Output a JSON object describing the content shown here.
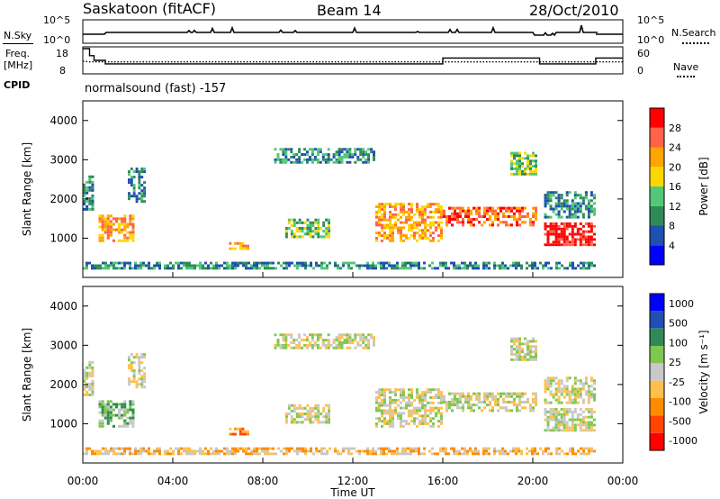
{
  "header": {
    "station": "Saskatoon (fitACF)",
    "beam": "Beam 14",
    "date": "28/Oct/2010"
  },
  "side_labels": {
    "nsky": "N.Sky",
    "freq_line1": "Freq.",
    "freq_line2": "[MHz]",
    "cpid": "CPID",
    "nsearch": "N.Search",
    "nave": "Nave"
  },
  "cpid_text": "normalsound (fast) -157",
  "colors": {
    "power_scale": [
      "#0000ff",
      "#1f4fb0",
      "#2e8b57",
      "#50c878",
      "#ffd700",
      "#ffa500",
      "#ff6347",
      "#ff0000"
    ],
    "velocity_scale": [
      "#ff0000",
      "#ff4500",
      "#ff8c00",
      "#ffc04c",
      "#c8c8c8",
      "#7ec850",
      "#2e8b57",
      "#1f4fb0",
      "#0000ff"
    ],
    "ground_scatter": "#c8c8c8"
  },
  "chart_data": [
    {
      "type": "line",
      "name": "noise-panel",
      "y_tick_labels": [
        "10^5",
        "10^0"
      ],
      "y2_tick_labels": [
        "10^5",
        "10^0"
      ],
      "series": [
        {
          "name": "N.Sky",
          "style": "solid"
        },
        {
          "name": "N.Search",
          "style": "dotted"
        }
      ]
    },
    {
      "type": "line",
      "name": "freq-nave-panel",
      "y_tick_labels": [
        "18",
        "8"
      ],
      "y2_tick_labels": [
        "60",
        "0"
      ],
      "x_hours": [
        0,
        0.3,
        0.5,
        1.0,
        1.7,
        16.0,
        20.2,
        20.3,
        21.0,
        22.8,
        24.0
      ],
      "series": [
        {
          "name": "Freq. [MHz]",
          "style": "solid",
          "values": [
            18,
            15,
            13,
            11.5,
            11.5,
            14,
            14,
            11.5,
            11.5,
            14,
            14
          ]
        },
        {
          "name": "Nave",
          "style": "dotted",
          "values": [
            28,
            26,
            26,
            26,
            26,
            26,
            26,
            26,
            26,
            26,
            26
          ]
        }
      ]
    },
    {
      "type": "heatmap",
      "name": "power-panel",
      "ylabel": "Slant Range [km]",
      "y_ticks": [
        "1000",
        "2000",
        "3000",
        "4000"
      ],
      "ylim": [
        0,
        4500
      ],
      "colorbar_label": "Power [dB]",
      "colorbar_ticks": [
        "4",
        "8",
        "12",
        "16",
        "20",
        "24",
        "28"
      ],
      "echo_bands": [
        {
          "t0": 0.0,
          "t1": 0.5,
          "r0": 1700,
          "r1": 2600,
          "v": 2
        },
        {
          "t0": 0.7,
          "t1": 2.3,
          "r0": 900,
          "r1": 1600,
          "v": 5
        },
        {
          "t0": 2.0,
          "t1": 2.8,
          "r0": 1900,
          "r1": 2800,
          "v": 2
        },
        {
          "t0": 6.5,
          "t1": 7.4,
          "r0": 700,
          "r1": 900,
          "v": 5
        },
        {
          "t0": 9.0,
          "t1": 11.0,
          "r0": 1000,
          "r1": 1500,
          "v": 3
        },
        {
          "t0": 8.5,
          "t1": 13.0,
          "r0": 2900,
          "r1": 3300,
          "v": 2
        },
        {
          "t0": 13.0,
          "t1": 16.0,
          "r0": 900,
          "r1": 1900,
          "v": 5
        },
        {
          "t0": 16.0,
          "t1": 20.2,
          "r0": 1300,
          "r1": 1800,
          "v": 6
        },
        {
          "t0": 19.0,
          "t1": 20.2,
          "r0": 2600,
          "r1": 3200,
          "v": 3
        },
        {
          "t0": 20.5,
          "t1": 22.8,
          "r0": 800,
          "r1": 1400,
          "v": 7
        },
        {
          "t0": 20.5,
          "t1": 22.8,
          "r0": 1500,
          "r1": 2200,
          "v": 2
        },
        {
          "t0": 0.0,
          "t1": 22.8,
          "r0": 200,
          "r1": 400,
          "v": 2
        }
      ]
    },
    {
      "type": "heatmap",
      "name": "velocity-panel",
      "ylabel": "Slant Range [km]",
      "y_ticks": [
        "1000",
        "2000",
        "3000",
        "4000"
      ],
      "ylim": [
        0,
        4500
      ],
      "colorbar_label": "Velocity [m s⁻¹]",
      "colorbar_ticks": [
        "1000",
        "500",
        "100",
        "25",
        "-25",
        "-100",
        "-500",
        "-1000"
      ],
      "echo_bands": [
        {
          "t0": 0.0,
          "t1": 0.5,
          "r0": 1700,
          "r1": 2600,
          "v": 4
        },
        {
          "t0": 0.7,
          "t1": 2.3,
          "r0": 900,
          "r1": 1600,
          "v": 5
        },
        {
          "t0": 2.0,
          "t1": 2.8,
          "r0": 1900,
          "r1": 2800,
          "v": 4
        },
        {
          "t0": 6.5,
          "t1": 7.4,
          "r0": 700,
          "r1": 900,
          "v": 2
        },
        {
          "t0": 9.0,
          "t1": 11.0,
          "r0": 1000,
          "r1": 1500,
          "v": 4
        },
        {
          "t0": 8.5,
          "t1": 13.0,
          "r0": 2900,
          "r1": 3300,
          "v": 4
        },
        {
          "t0": 13.0,
          "t1": 16.0,
          "r0": 900,
          "r1": 1900,
          "v": 4
        },
        {
          "t0": 16.0,
          "t1": 20.2,
          "r0": 1300,
          "r1": 1800,
          "v": 4
        },
        {
          "t0": 19.0,
          "t1": 20.2,
          "r0": 2600,
          "r1": 3200,
          "v": 4
        },
        {
          "t0": 20.5,
          "t1": 22.8,
          "r0": 800,
          "r1": 1400,
          "v": 4
        },
        {
          "t0": 20.5,
          "t1": 22.8,
          "r0": 1500,
          "r1": 2200,
          "v": 4
        },
        {
          "t0": 0.0,
          "t1": 22.8,
          "r0": 200,
          "r1": 400,
          "v": 3
        }
      ]
    }
  ],
  "x_axis": {
    "ticks": [
      "00:00",
      "04:00",
      "08:00",
      "12:00",
      "16:00",
      "20:00",
      "00:00"
    ],
    "label": "Time UT",
    "xlim_hours": [
      0,
      24
    ]
  }
}
